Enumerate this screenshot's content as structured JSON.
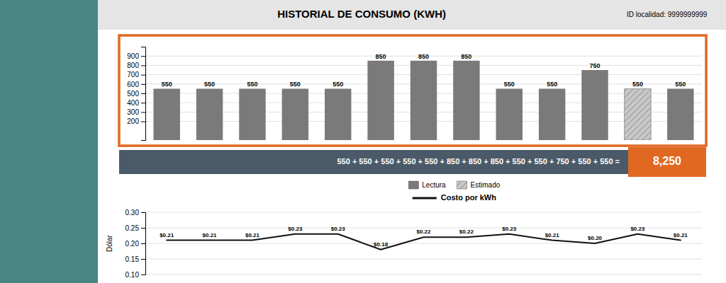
{
  "chart_data": [
    {
      "type": "bar",
      "title": "HISTORIAL DE CONSUMO (KWH)",
      "annotations": [
        "ID localidad: 9999999999",
        "550 + 550 + 550 + 550 + 550 + 850 + 850 + 850 + 550 + 550 + 750 + 550 + 550 =",
        "8,250"
      ],
      "categories": [
        null,
        null,
        null,
        null,
        null,
        null,
        null,
        null,
        null,
        null,
        null,
        null,
        null
      ],
      "series": [
        {
          "name": "Lectura",
          "color": "#7a7a7a",
          "values": [
            550,
            550,
            550,
            550,
            550,
            850,
            850,
            850,
            550,
            550,
            750,
            null,
            550
          ]
        },
        {
          "name": "Estimado",
          "color": "#c8c8c8",
          "values": [
            null,
            null,
            null,
            null,
            null,
            null,
            null,
            null,
            null,
            null,
            null,
            550,
            null
          ]
        }
      ],
      "ylim": [
        0,
        1000
      ],
      "yticks": [
        200,
        300,
        400,
        500,
        600,
        700,
        800,
        900
      ],
      "grid": true,
      "legend": "bottom",
      "data_labels": true,
      "tick_labels": "y"
    },
    {
      "type": "line",
      "ylabel": "Dólar",
      "categories": [
        null,
        null,
        null,
        null,
        null,
        null,
        null,
        null,
        null,
        null,
        null,
        null,
        null
      ],
      "series": [
        {
          "name": "Costo por kWh",
          "color": "#111111",
          "values": [
            0.21,
            0.21,
            0.21,
            0.23,
            0.23,
            0.18,
            0.22,
            0.22,
            0.23,
            0.21,
            0.2,
            0.23,
            0.21
          ],
          "value_labels": [
            "$0.21",
            "$0.21",
            "$0.21",
            "$0.23",
            "$0.23",
            "$0.18",
            "$0.22",
            "$0.22",
            "$0.23",
            "$0.21",
            "$0.20",
            "$0.23",
            "$0.21"
          ]
        }
      ],
      "ylim": [
        0.1,
        0.3
      ],
      "yticks": [
        {
          "value": 0.1,
          "label": "0.10"
        },
        0.15,
        {
          "value": 0.2,
          "label": "0.20"
        },
        0.25,
        {
          "value": 0.3,
          "label": "0.30"
        }
      ],
      "grid": true,
      "legend": "top",
      "data_labels": true,
      "tick_labels": "y"
    }
  ]
}
